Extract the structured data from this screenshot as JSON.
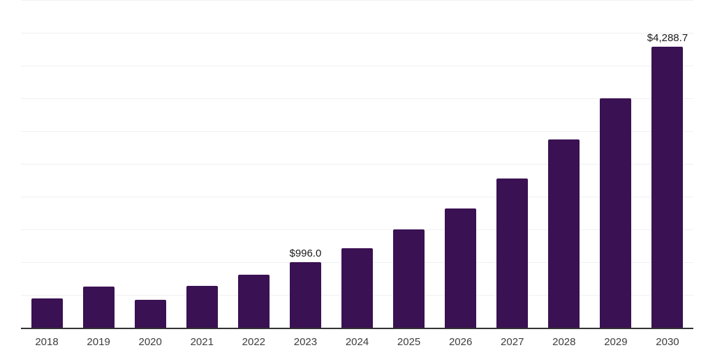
{
  "chart_data": {
    "type": "bar",
    "categories": [
      "2018",
      "2019",
      "2020",
      "2021",
      "2022",
      "2023",
      "2024",
      "2025",
      "2026",
      "2027",
      "2028",
      "2029",
      "2030"
    ],
    "values": [
      450,
      630,
      425,
      640,
      810,
      996.0,
      1215,
      1500,
      1820,
      2275,
      2870,
      3500,
      4288.7
    ],
    "value_labels": {
      "2023": "$996.0",
      "2030": "$4,288.7"
    },
    "ylim": [
      0,
      5000
    ],
    "gridline_interval": 500,
    "grid": "horizontal",
    "y_tick_labels": "hidden",
    "legend": "none",
    "currency_prefix": "$",
    "colors": {
      "bar": "#3a1152",
      "gridline": "#f0f0f0",
      "axis_line": "#333333",
      "x_label_text": "#3d3d3d",
      "value_label_text": "#1a1a1a",
      "background": "#ffffff"
    }
  }
}
